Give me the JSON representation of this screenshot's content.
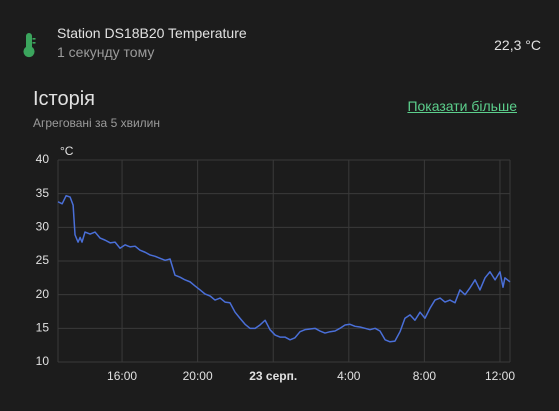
{
  "header": {
    "title": "Station DS18B20 Temperature",
    "subtitle": "1 секунду тому",
    "state": "22,3 °C"
  },
  "history": {
    "title": "Історія",
    "subtitle": "Агреговані за 5 хвилин",
    "link": "Показати більше"
  },
  "chart_data": {
    "type": "line",
    "y_unit": "°C",
    "x": [
      12.61,
      12.83,
      13.04,
      13.25,
      13.41,
      13.51,
      13.67,
      13.78,
      13.88,
      14.04,
      14.31,
      14.57,
      14.84,
      15.1,
      15.37,
      15.63,
      15.89,
      16.16,
      16.42,
      16.69,
      16.95,
      17.22,
      17.48,
      17.75,
      18.01,
      18.28,
      18.54,
      18.8,
      19.07,
      19.33,
      19.6,
      19.86,
      20.13,
      20.39,
      20.66,
      20.92,
      21.19,
      21.45,
      21.71,
      21.98,
      22.24,
      22.51,
      22.77,
      23.04,
      23.3,
      23.57,
      23.83,
      24.1,
      24.36,
      24.62,
      24.89,
      25.15,
      25.42,
      25.68,
      25.95,
      26.21,
      26.48,
      26.74,
      27.01,
      27.27,
      27.53,
      27.8,
      28.06,
      28.33,
      28.59,
      28.86,
      29.12,
      29.39,
      29.65,
      29.92,
      30.18,
      30.44,
      30.71,
      30.97,
      31.24,
      31.5,
      31.77,
      32.03,
      32.3,
      32.56,
      32.83,
      33.09,
      33.35,
      33.62,
      33.88,
      34.15,
      34.41,
      34.68,
      34.94,
      35.21,
      35.47,
      35.74,
      36.0,
      36.16,
      36.26,
      36.53
    ],
    "series": [
      {
        "color": "#4a6fd8",
        "values": [
          33.8,
          33.5,
          34.7,
          34.5,
          33.3,
          28.9,
          27.8,
          28.5,
          27.8,
          29.3,
          29.0,
          29.3,
          28.4,
          28.1,
          27.7,
          27.8,
          26.9,
          27.4,
          27.1,
          27.2,
          26.6,
          26.3,
          25.9,
          25.7,
          25.4,
          25.1,
          25.3,
          22.9,
          22.6,
          22.2,
          21.9,
          21.3,
          20.7,
          20.1,
          19.8,
          19.2,
          19.5,
          18.9,
          18.8,
          17.4,
          16.5,
          15.6,
          15.0,
          15.0,
          15.5,
          16.2,
          14.8,
          14.0,
          13.7,
          13.7,
          13.3,
          13.6,
          14.5,
          14.8,
          14.9,
          15.0,
          14.6,
          14.3,
          14.5,
          14.6,
          15.0,
          15.5,
          15.6,
          15.3,
          15.2,
          15.0,
          14.8,
          15.0,
          14.6,
          13.3,
          13.0,
          13.1,
          14.5,
          16.5,
          17.0,
          16.2,
          17.4,
          16.5,
          18.0,
          19.2,
          19.5,
          18.9,
          19.2,
          18.8,
          20.7,
          20.0,
          21.0,
          22.2,
          20.7,
          22.5,
          23.4,
          22.2,
          23.4,
          21.1,
          22.5,
          21.9
        ]
      }
    ],
    "xlim": [
      12.61,
      36.53
    ],
    "xticks": [
      {
        "value": 16,
        "label": "16:00"
      },
      {
        "value": 20,
        "label": "20:00"
      },
      {
        "value": 24,
        "label": "23 серп."
      },
      {
        "value": 28,
        "label": "4:00"
      },
      {
        "value": 32,
        "label": "8:00"
      },
      {
        "value": 36,
        "label": "12:00"
      }
    ],
    "ylim": [
      10,
      40
    ],
    "yticks": [
      10,
      15,
      20,
      25,
      30,
      35,
      40
    ],
    "grid": true
  }
}
